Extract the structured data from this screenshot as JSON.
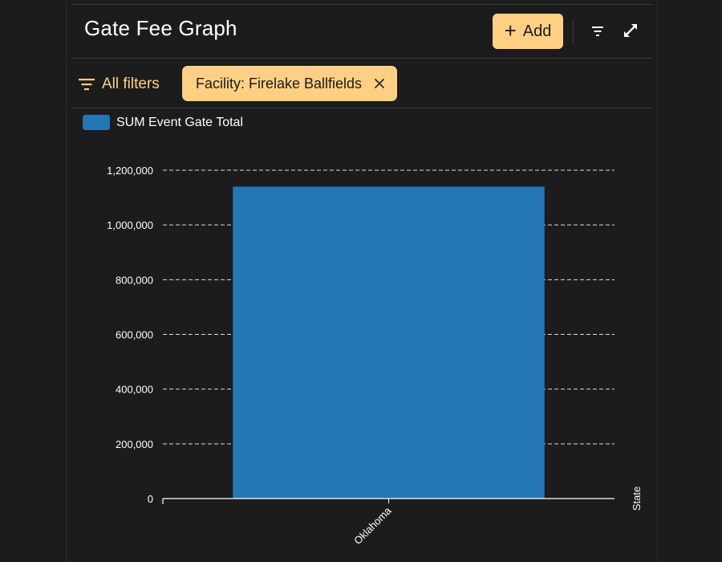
{
  "header": {
    "title": "Gate Fee Graph",
    "add_label": "Add",
    "icons": [
      "plus-icon",
      "filter-lines-icon",
      "expand-icon"
    ]
  },
  "filters": {
    "all_filters_label": "All filters",
    "chips": [
      {
        "label": "Facility: Firelake Ballfields"
      }
    ]
  },
  "colors": {
    "background": "#1c1c1c",
    "accent": "#ffd083",
    "bar": "#2377b5",
    "grid": "#d9d9d9",
    "text": "#ffffff"
  },
  "chart_data": {
    "type": "bar",
    "categories": [
      "Oklahoma"
    ],
    "series": [
      {
        "name": "SUM Event Gate Total",
        "values": [
          1140000
        ]
      }
    ],
    "ylim": [
      0,
      1200000
    ],
    "yticks": [
      0,
      200000,
      400000,
      600000,
      800000,
      1000000,
      1200000
    ],
    "ytick_labels": [
      "0",
      "200,000",
      "400,000",
      "600,000",
      "800,000",
      "1,000,000",
      "1,200,000"
    ],
    "xlabel": "State",
    "ylabel": "",
    "grid": true,
    "legend": "top-left"
  }
}
